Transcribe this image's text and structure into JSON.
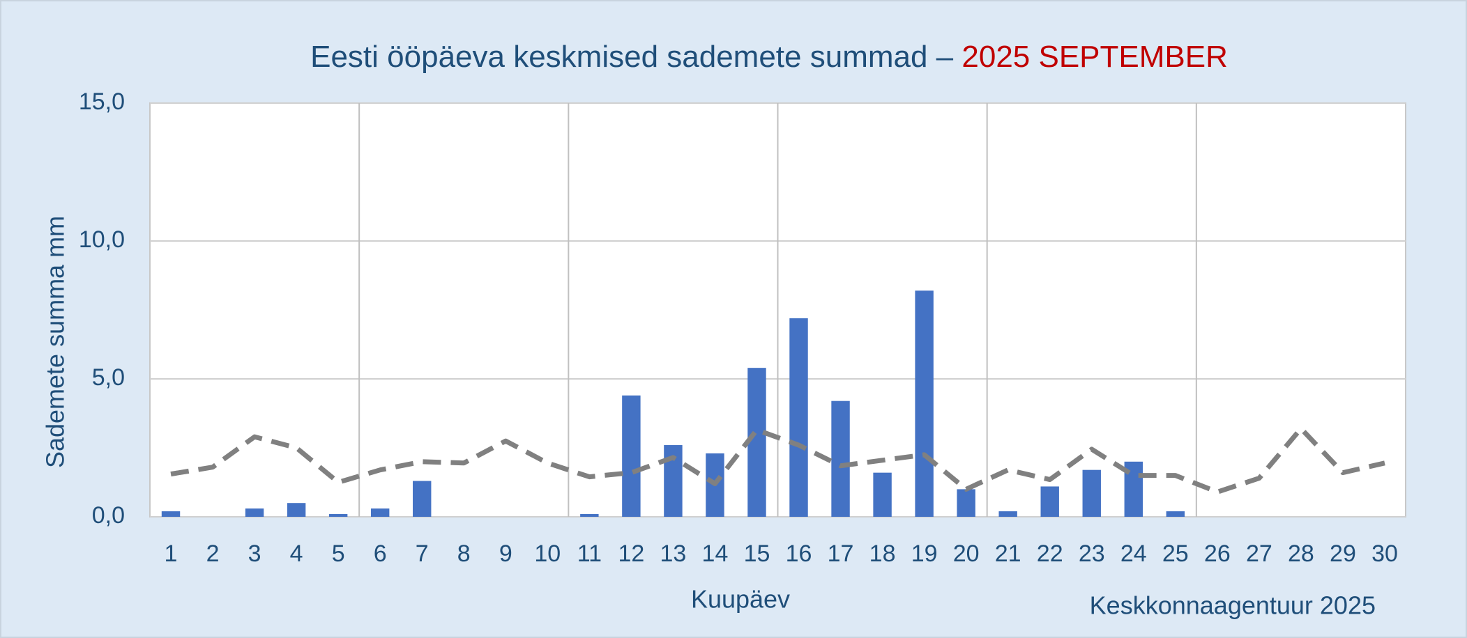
{
  "chart_data": {
    "type": "bar",
    "title": "Eesti ööpäeva keskmised sademete summad –",
    "title_highlight": "2025 SEPTEMBER",
    "x_label": "Kuupäev",
    "y_label": "Sademete summa mm",
    "source": "Keskkonnaagentuur 2025",
    "categories": [
      "1",
      "2",
      "3",
      "4",
      "5",
      "6",
      "7",
      "8",
      "9",
      "10",
      "11",
      "12",
      "13",
      "14",
      "15",
      "16",
      "17",
      "18",
      "19",
      "20",
      "21",
      "22",
      "23",
      "24",
      "25",
      "26",
      "27",
      "28",
      "29",
      "30"
    ],
    "series": [
      {
        "type": "bar",
        "color": "#4472c4",
        "values": [
          0.2,
          0,
          0.3,
          0.5,
          0.1,
          0.3,
          1.3,
          0,
          0,
          0,
          0.1,
          4.4,
          2.6,
          2.3,
          5.4,
          7.2,
          4.2,
          1.6,
          8.2,
          1.0,
          0.2,
          1.1,
          1.7,
          2.0,
          0.2,
          0,
          0,
          0,
          0,
          0
        ]
      },
      {
        "type": "line",
        "color": "#808080",
        "dashed": true,
        "values": [
          1.55,
          1.8,
          2.9,
          2.5,
          1.25,
          1.7,
          2.0,
          1.95,
          2.75,
          1.95,
          1.45,
          1.6,
          2.15,
          1.2,
          3.15,
          2.6,
          1.85,
          2.05,
          2.25,
          1.0,
          1.7,
          1.35,
          2.45,
          1.5,
          1.5,
          0.9,
          1.4,
          3.2,
          1.6,
          1.95
        ]
      }
    ],
    "ylim": [
      0,
      15
    ],
    "yticks": [
      {
        "value": 0,
        "label": "0,0"
      },
      {
        "value": 5,
        "label": "5,0"
      },
      {
        "value": 10,
        "label": "10,0"
      },
      {
        "value": 15,
        "label": "15,0"
      }
    ],
    "grid": true
  }
}
